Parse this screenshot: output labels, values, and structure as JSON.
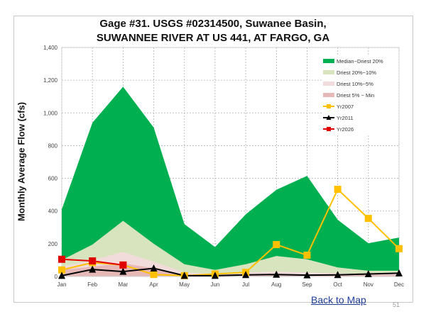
{
  "slide": {
    "title_line1": "Gage #31. USGS #02314500, Suwanee Basin,",
    "title_line2": "SUWANNEE RIVER AT US 441, AT FARGO, GA",
    "back_link": "Back to Map",
    "page_number": "51"
  },
  "chart_data": {
    "type": "area",
    "title": "Gage #31. USGS #02314500, Suwanee Basin, SUWANNEE RIVER AT US 441, AT FARGO, GA",
    "xlabel": "",
    "ylabel": "Monthly Average Flow (cfs)",
    "ylim": [
      0,
      1400
    ],
    "yticks": [
      0,
      200,
      400,
      600,
      800,
      1000,
      1200,
      1400
    ],
    "ytick_labels": [
      "0",
      "200",
      "400",
      "600",
      "800",
      "1,000",
      "1,200",
      "1,400"
    ],
    "grid": true,
    "legend_position": "upper right (inside plot)",
    "categories": [
      "Jan",
      "Feb",
      "Mar",
      "Apr",
      "May",
      "Jun",
      "Jul",
      "Aug",
      "Sep",
      "Oct",
      "Nov",
      "Dec"
    ],
    "bands": [
      {
        "name": "Median~Driest 20%",
        "color": "#00b050",
        "values": [
          410,
          940,
          1160,
          910,
          320,
          180,
          380,
          530,
          615,
          347,
          203,
          238
        ]
      },
      {
        "name": "Driest 20%~10%",
        "color": "#d7e4bd",
        "values": [
          100,
          195,
          340,
          200,
          75,
          40,
          75,
          125,
          105,
          55,
          35,
          35
        ]
      },
      {
        "name": "Driest 10%~5%",
        "color": "#f2dcdb",
        "values": [
          60,
          100,
          150,
          90,
          25,
          15,
          25,
          30,
          25,
          20,
          15,
          15
        ]
      },
      {
        "name": "Driest 5% ~ Min",
        "color": "#e6b9b8",
        "values": [
          40,
          60,
          80,
          50,
          10,
          8,
          12,
          15,
          12,
          10,
          10,
          10
        ]
      }
    ],
    "series": [
      {
        "name": "Yr2007",
        "color": "#ffc000",
        "marker": "square",
        "values": [
          40,
          85,
          70,
          12,
          5,
          15,
          25,
          195,
          130,
          533,
          355,
          170
        ]
      },
      {
        "name": "Yr2011",
        "color": "#000000",
        "marker": "triangle",
        "values": [
          5,
          43,
          30,
          50,
          5,
          5,
          10,
          12,
          8,
          10,
          15,
          20
        ]
      },
      {
        "name": "Yr2026",
        "color": "#e00000",
        "marker": "square",
        "values": [
          105,
          95,
          70,
          null,
          null,
          null,
          null,
          null,
          null,
          null,
          null,
          null
        ]
      }
    ]
  }
}
